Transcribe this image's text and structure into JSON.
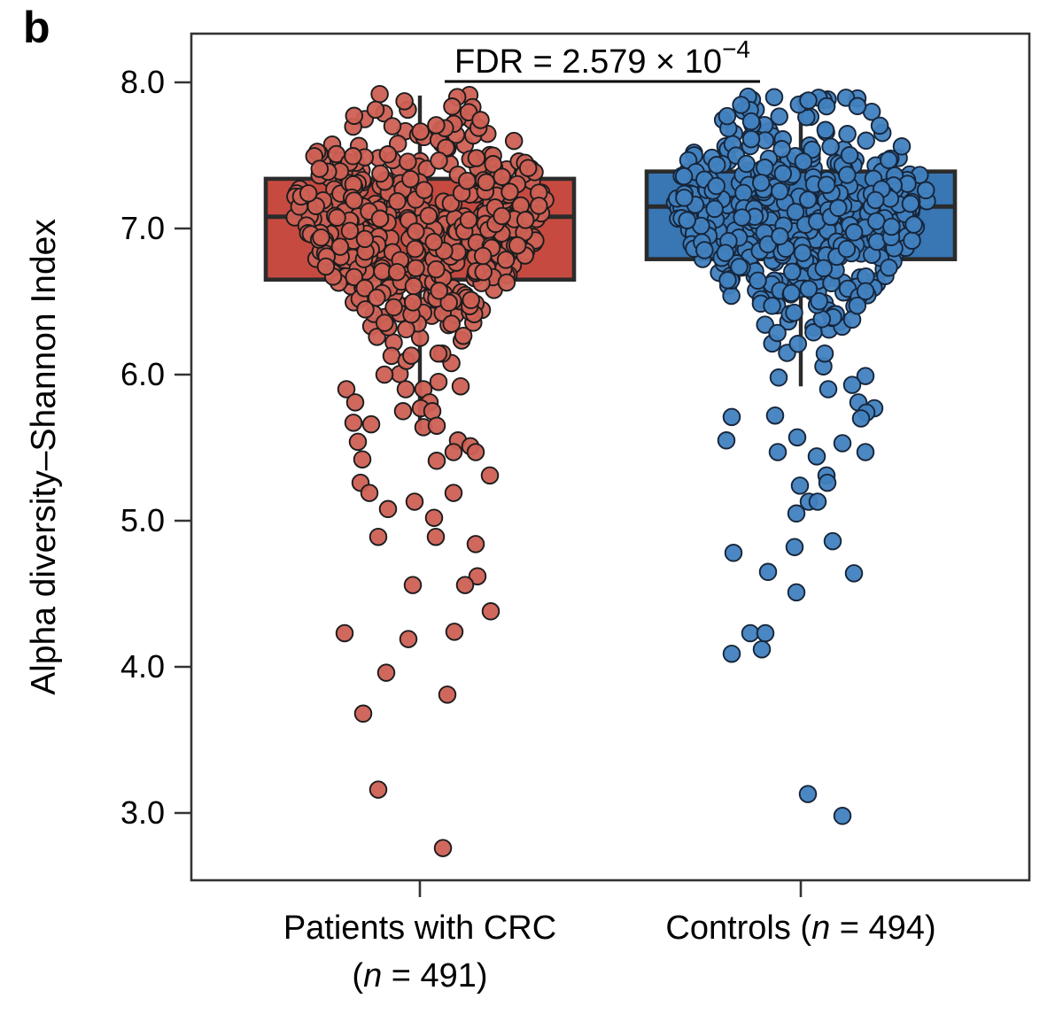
{
  "panel_label": "b",
  "chart_data": {
    "type": "boxplot",
    "title": "",
    "ylabel": "Alpha diversity–Shannon Index",
    "ylim": [
      2.54,
      8.33
    ],
    "yticks": [
      "8.0",
      "7.0",
      "6.0",
      "5.0",
      "4.0",
      "3.0"
    ],
    "ytick_values": [
      8.0,
      7.0,
      6.0,
      5.0,
      4.0,
      3.0
    ],
    "grid": "off",
    "legend": "none",
    "annotation": {
      "text": "FDR = 2.579 × 10",
      "superscript": "−4",
      "bracket_from_group": 0,
      "bracket_to_group": 1
    },
    "groups": [
      {
        "id": "patients-crc",
        "label_lines": [
          [
            {
              "t": "Patients with CRC",
              "i": false
            }
          ],
          [
            {
              "t": "(",
              "i": false
            },
            {
              "t": "n",
              "i": true
            },
            {
              "t": " = 491)",
              "i": false
            }
          ]
        ],
        "n": 491,
        "box": {
          "q1": 6.65,
          "median": 7.08,
          "q3": 7.34,
          "whisker_low": 5.62,
          "whisker_high": 7.91
        },
        "colors": {
          "box_fill": "#C64A40",
          "point_fill": "#CD6054",
          "point_stroke": "#1c1c1c"
        },
        "cloud": {
          "count": 447,
          "mean": 7.03,
          "sd": 0.42,
          "min": 5.98,
          "max": 7.93
        },
        "tail_points": [
          [
            -40,
            6.0
          ],
          [
            -83,
            5.9
          ],
          [
            -16,
            5.9
          ],
          [
            4,
            5.9
          ],
          [
            21,
            5.95
          ],
          [
            46,
            5.92
          ],
          [
            -73,
            5.81
          ],
          [
            11,
            5.81
          ],
          [
            1,
            5.77
          ],
          [
            -19,
            5.75
          ],
          [
            14,
            5.75
          ],
          [
            -75,
            5.67
          ],
          [
            -55,
            5.66
          ],
          [
            4,
            5.64
          ],
          [
            19,
            5.65
          ],
          [
            -70,
            5.54
          ],
          [
            43,
            5.55
          ],
          [
            57,
            5.51
          ],
          [
            63,
            5.47
          ],
          [
            38,
            5.47
          ],
          [
            -65,
            5.42
          ],
          [
            19,
            5.41
          ],
          [
            79,
            5.31
          ],
          [
            -67,
            5.26
          ],
          [
            -57,
            5.19
          ],
          [
            38,
            5.19
          ],
          [
            -6,
            5.13
          ],
          [
            -36,
            5.08
          ],
          [
            16,
            5.02
          ],
          [
            -47,
            4.89
          ],
          [
            18,
            4.89
          ],
          [
            63,
            4.84
          ],
          [
            65,
            4.62
          ],
          [
            -8,
            4.56
          ],
          [
            51,
            4.56
          ],
          [
            80,
            4.38
          ],
          [
            -85,
            4.23
          ],
          [
            -13,
            4.19
          ],
          [
            39,
            4.24
          ],
          [
            -38,
            3.96
          ],
          [
            31,
            3.81
          ],
          [
            -64,
            3.68
          ],
          [
            -47,
            3.16
          ],
          [
            26,
            2.76
          ]
        ]
      },
      {
        "id": "controls",
        "label_lines": [
          [
            {
              "t": "Controls (",
              "i": false
            },
            {
              "t": "n",
              "i": true
            },
            {
              "t": " = 494)",
              "i": false
            }
          ]
        ],
        "n": 494,
        "box": {
          "q1": 6.79,
          "median": 7.15,
          "q3": 7.39,
          "whisker_low": 5.92,
          "whisker_high": 7.89
        },
        "colors": {
          "box_fill": "#3876B4",
          "point_fill": "#4181BF",
          "point_stroke": "#16253a"
        },
        "cloud": {
          "count": 460,
          "mean": 7.08,
          "sd": 0.38,
          "min": 5.98,
          "max": 7.93
        },
        "tail_points": [
          [
            -25,
            5.98
          ],
          [
            73,
            5.99
          ],
          [
            58,
            5.93
          ],
          [
            31,
            5.9
          ],
          [
            65,
            5.81
          ],
          [
            83,
            5.77
          ],
          [
            74,
            5.74
          ],
          [
            68,
            5.7
          ],
          [
            -78,
            5.71
          ],
          [
            -29,
            5.72
          ],
          [
            -84,
            5.55
          ],
          [
            -4,
            5.57
          ],
          [
            47,
            5.53
          ],
          [
            -26,
            5.47
          ],
          [
            73,
            5.47
          ],
          [
            18,
            5.44
          ],
          [
            29,
            5.31
          ],
          [
            30,
            5.26
          ],
          [
            -1,
            5.24
          ],
          [
            9,
            5.13
          ],
          [
            19,
            5.13
          ],
          [
            -5,
            5.05
          ],
          [
            36,
            4.86
          ],
          [
            -7,
            4.82
          ],
          [
            -76,
            4.78
          ],
          [
            -37,
            4.65
          ],
          [
            60,
            4.64
          ],
          [
            -5,
            4.51
          ],
          [
            -57,
            4.23
          ],
          [
            -40,
            4.23
          ],
          [
            -44,
            4.12
          ],
          [
            -78,
            4.09
          ],
          [
            8,
            3.13
          ],
          [
            47,
            2.98
          ]
        ]
      }
    ],
    "style_colors": {
      "axis": "#333333",
      "box_stroke": "#2b2b2b",
      "text": "#000000"
    }
  }
}
